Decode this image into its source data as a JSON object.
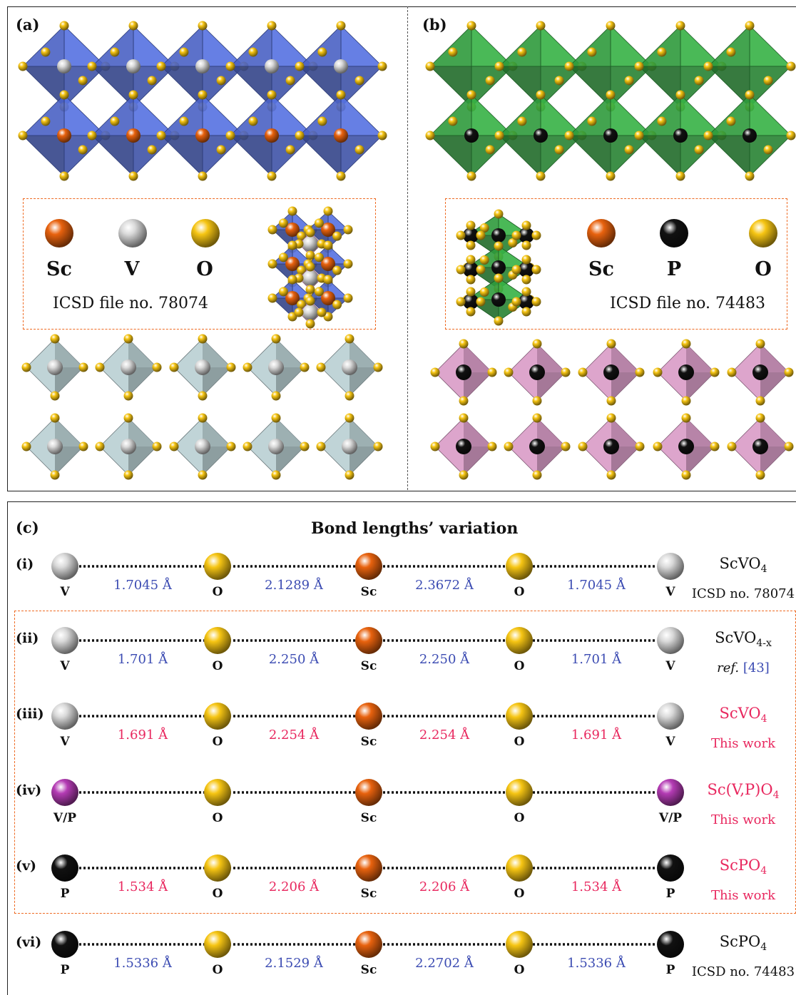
{
  "colors": {
    "sc": "#e8620e",
    "v": "#d9d9d9",
    "o": "#f6c513",
    "p": "#111111",
    "vp": "#b43bb4",
    "blue_poly": "#4a62c4",
    "green_poly": "#2f9a3c",
    "grey_poly": "#b9cfd3",
    "pink_poly": "#d99bc7",
    "bond_ref": "#3b4bb2",
    "bond_this": "#e8275e",
    "box": "#ee6a22"
  },
  "panel_a": {
    "label": "(a)",
    "legend": [
      "Sc",
      "V",
      "O"
    ],
    "icsd": "ICSD file no. 78074"
  },
  "panel_b": {
    "label": "(b)",
    "legend": [
      "Sc",
      "P",
      "O"
    ],
    "icsd": "ICSD file no. 74483"
  },
  "panel_c": {
    "label": "(c)",
    "title": "Bond lengths’ variation",
    "rows": [
      {
        "id": "(i)",
        "end_atom": "V",
        "end_color": "v",
        "bonds": [
          "1.7045 Å",
          "2.1289 Å",
          "2.3672 Å",
          "1.7045 Å"
        ],
        "bond_color": "blue",
        "compound": "ScVO",
        "compound_sub": "4",
        "source": "ICSD no. 78074",
        "source_style": "black"
      },
      {
        "id": "(ii)",
        "end_atom": "V",
        "end_color": "v",
        "bonds": [
          "1.701 Å",
          "2.250 Å",
          "2.250 Å",
          "1.701 Å"
        ],
        "bond_color": "blue",
        "compound": "ScVO",
        "compound_sub": "4-x",
        "source": "ref. [43]",
        "source_style": "ref"
      },
      {
        "id": "(iii)",
        "end_atom": "V",
        "end_color": "v",
        "bonds": [
          "1.691 Å",
          "2.254 Å",
          "2.254 Å",
          "1.691 Å"
        ],
        "bond_color": "red",
        "compound": "ScVO",
        "compound_sub": "4",
        "source": "This work",
        "source_style": "red"
      },
      {
        "id": "(iv)",
        "end_atom": "V/P",
        "end_color": "vp",
        "bonds": [
          "",
          "",
          "",
          ""
        ],
        "bond_color": "red",
        "compound": "Sc(V,P)O",
        "compound_sub": "4",
        "source": "This work",
        "source_style": "red"
      },
      {
        "id": "(v)",
        "end_atom": "P",
        "end_color": "p",
        "bonds": [
          "1.534 Å",
          "2.206 Å",
          "2.206 Å",
          "1.534 Å"
        ],
        "bond_color": "red",
        "compound": "ScPO",
        "compound_sub": "4",
        "source": "This work",
        "source_style": "red"
      },
      {
        "id": "(vi)",
        "end_atom": "P",
        "end_color": "p",
        "bonds": [
          "1.5336 Å",
          "2.1529 Å",
          "2.2702 Å",
          "1.5336 Å"
        ],
        "bond_color": "blue",
        "compound": "ScPO",
        "compound_sub": "4",
        "source": "ICSD no. 74483",
        "source_style": "black"
      }
    ],
    "middle_atoms": [
      "O",
      "Sc",
      "O"
    ]
  }
}
